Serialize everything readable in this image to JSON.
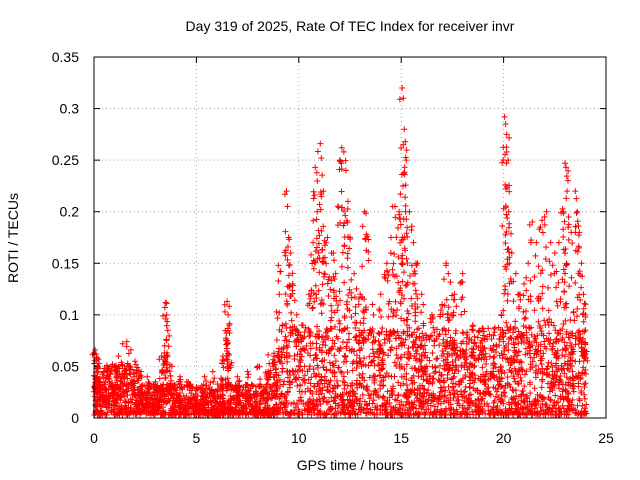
{
  "chart_data": {
    "type": "scatter",
    "title": "Day 319 of 2025, Rate Of TEC Index for receiver invr",
    "xlabel": "GPS time / hours",
    "ylabel": "ROTI / TECUs",
    "xlim": [
      0,
      25
    ],
    "ylim": [
      0,
      0.35
    ],
    "xticks": [
      0,
      5,
      10,
      15,
      20,
      25
    ],
    "yticks": [
      0,
      0.05,
      0.1,
      0.15,
      0.2,
      0.25,
      0.3,
      0.35
    ],
    "xtick_labels": [
      "0",
      "5",
      "10",
      "15",
      "20",
      "25"
    ],
    "ytick_labels": [
      "0",
      "0.05",
      "0.1",
      "0.15",
      "0.2",
      "0.25",
      "0.3",
      "0.35"
    ],
    "grid": true,
    "marker": "plus",
    "color": "#ff0000",
    "envelope_note": "dense band 0–0.06 throughout, activity increasing after ~9 h",
    "points": [
      [
        0.05,
        0.066
      ],
      [
        0.1,
        0.062
      ],
      [
        0.15,
        0.058
      ],
      [
        0.2,
        0.045
      ],
      [
        0.3,
        0.035
      ],
      [
        0.5,
        0.048
      ],
      [
        0.7,
        0.04
      ],
      [
        1.0,
        0.05
      ],
      [
        1.2,
        0.06
      ],
      [
        1.4,
        0.072
      ],
      [
        1.6,
        0.074
      ],
      [
        1.8,
        0.066
      ],
      [
        2.0,
        0.055
      ],
      [
        2.3,
        0.045
      ],
      [
        2.6,
        0.04
      ],
      [
        3.0,
        0.035
      ],
      [
        3.3,
        0.06
      ],
      [
        3.45,
        0.07
      ],
      [
        3.5,
        0.112
      ],
      [
        3.55,
        0.1
      ],
      [
        3.6,
        0.085
      ],
      [
        3.8,
        0.05
      ],
      [
        4.2,
        0.04
      ],
      [
        4.6,
        0.035
      ],
      [
        5.0,
        0.03
      ],
      [
        5.4,
        0.04
      ],
      [
        5.8,
        0.045
      ],
      [
        6.3,
        0.06
      ],
      [
        6.45,
        0.075
      ],
      [
        6.5,
        0.113
      ],
      [
        6.55,
        0.1
      ],
      [
        6.6,
        0.09
      ],
      [
        7.0,
        0.04
      ],
      [
        7.5,
        0.045
      ],
      [
        8.0,
        0.05
      ],
      [
        8.5,
        0.045
      ],
      [
        8.8,
        0.06
      ],
      [
        9.0,
        0.148
      ],
      [
        9.05,
        0.12
      ],
      [
        9.2,
        0.09
      ],
      [
        9.4,
        0.22
      ],
      [
        9.45,
        0.205
      ],
      [
        9.5,
        0.175
      ],
      [
        9.6,
        0.16
      ],
      [
        9.7,
        0.13
      ],
      [
        9.9,
        0.1
      ],
      [
        10.2,
        0.09
      ],
      [
        10.5,
        0.12
      ],
      [
        10.7,
        0.17
      ],
      [
        10.8,
        0.243
      ],
      [
        10.9,
        0.2
      ],
      [
        11.05,
        0.266
      ],
      [
        11.1,
        0.252
      ],
      [
        11.2,
        0.22
      ],
      [
        11.4,
        0.175
      ],
      [
        11.6,
        0.16
      ],
      [
        11.8,
        0.14
      ],
      [
        12.0,
        0.25
      ],
      [
        12.1,
        0.262
      ],
      [
        12.2,
        0.258
      ],
      [
        12.3,
        0.24
      ],
      [
        12.4,
        0.21
      ],
      [
        12.5,
        0.175
      ],
      [
        12.7,
        0.14
      ],
      [
        13.0,
        0.12
      ],
      [
        13.2,
        0.2
      ],
      [
        13.3,
        0.178
      ],
      [
        13.6,
        0.11
      ],
      [
        14.0,
        0.12
      ],
      [
        14.3,
        0.15
      ],
      [
        14.5,
        0.175
      ],
      [
        14.7,
        0.205
      ],
      [
        14.9,
        0.2
      ],
      [
        15.05,
        0.32
      ],
      [
        15.1,
        0.31
      ],
      [
        15.15,
        0.28
      ],
      [
        15.2,
        0.268
      ],
      [
        15.25,
        0.25
      ],
      [
        15.4,
        0.2
      ],
      [
        15.6,
        0.17
      ],
      [
        15.8,
        0.15
      ],
      [
        16.0,
        0.12
      ],
      [
        16.5,
        0.1
      ],
      [
        17.0,
        0.11
      ],
      [
        17.2,
        0.15
      ],
      [
        17.3,
        0.14
      ],
      [
        17.6,
        0.12
      ],
      [
        18.0,
        0.14
      ],
      [
        18.5,
        0.09
      ],
      [
        19.0,
        0.08
      ],
      [
        19.5,
        0.07
      ],
      [
        19.9,
        0.1
      ],
      [
        20.05,
        0.292
      ],
      [
        20.1,
        0.285
      ],
      [
        20.15,
        0.275
      ],
      [
        20.25,
        0.2
      ],
      [
        20.4,
        0.16
      ],
      [
        20.6,
        0.14
      ],
      [
        20.8,
        0.12
      ],
      [
        21.0,
        0.13
      ],
      [
        21.2,
        0.15
      ],
      [
        21.4,
        0.19
      ],
      [
        21.6,
        0.17
      ],
      [
        21.8,
        0.185
      ],
      [
        22.0,
        0.195
      ],
      [
        22.1,
        0.2
      ],
      [
        22.3,
        0.17
      ],
      [
        22.5,
        0.16
      ],
      [
        22.7,
        0.17
      ],
      [
        22.9,
        0.2
      ],
      [
        23.0,
        0.247
      ],
      [
        23.05,
        0.243
      ],
      [
        23.1,
        0.22
      ],
      [
        23.3,
        0.18
      ],
      [
        23.5,
        0.22
      ],
      [
        23.6,
        0.2
      ],
      [
        23.7,
        0.18
      ],
      [
        23.8,
        0.15
      ],
      [
        23.9,
        0.12
      ],
      [
        24.0,
        0.1
      ]
    ]
  }
}
